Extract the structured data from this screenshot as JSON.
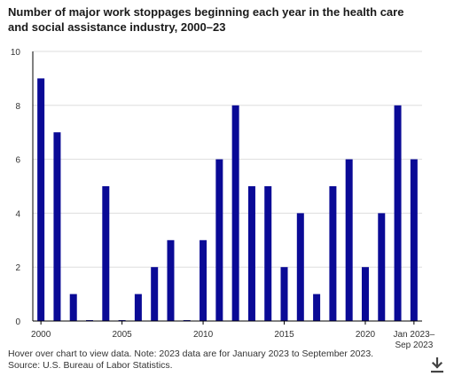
{
  "title": "Number of major work stoppages beginning each year in the health care and social assistance industry, 2000–23",
  "notes": {
    "line1": "Hover over chart to view data. Note: 2023 data are for January 2023 to September 2023.",
    "line2": "Source: U.S. Bureau of Labor Statistics."
  },
  "icons": {
    "download": "download-icon"
  },
  "colors": {
    "bar": "#0a0a96",
    "axis": "#000000",
    "grid": "#dddddd"
  },
  "chart_data": {
    "type": "bar",
    "title": "Number of major work stoppages beginning each year in the health care and social assistance industry, 2000–23",
    "categories": [
      "2000",
      "2001",
      "2002",
      "2003",
      "2004",
      "2005",
      "2006",
      "2007",
      "2008",
      "2009",
      "2010",
      "2011",
      "2012",
      "2013",
      "2014",
      "2015",
      "2016",
      "2017",
      "2018",
      "2019",
      "2020",
      "2021",
      "2022",
      "Jan 2023–Sep 2023"
    ],
    "values": [
      9,
      7,
      1,
      0,
      5,
      0,
      1,
      2,
      3,
      0,
      3,
      6,
      8,
      5,
      5,
      2,
      4,
      1,
      5,
      6,
      2,
      4,
      8,
      6
    ],
    "ylim": [
      0,
      10
    ],
    "yticks": [
      "0",
      "2",
      "4",
      "6",
      "8",
      "10"
    ],
    "xtick_labels": [
      {
        "index": 0,
        "text": "2000"
      },
      {
        "index": 5,
        "text": "2005"
      },
      {
        "index": 10,
        "text": "2010"
      },
      {
        "index": 15,
        "text": "2015"
      },
      {
        "index": 20,
        "text": "2020"
      },
      {
        "index": 23,
        "text": "Jan 2023–",
        "text2": "Sep 2023"
      }
    ],
    "grid": true,
    "legend": "none"
  }
}
